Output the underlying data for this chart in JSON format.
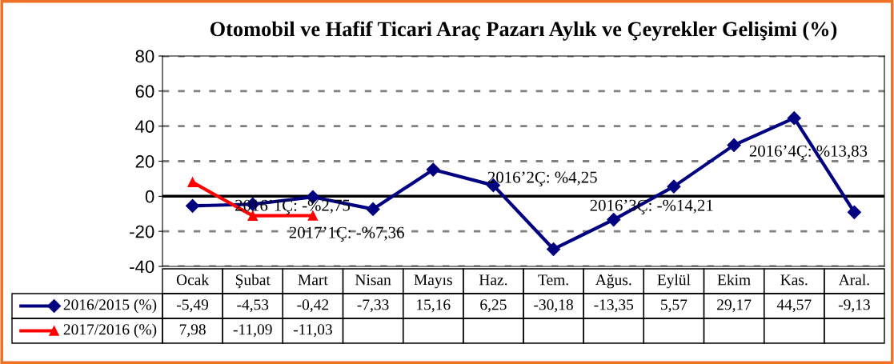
{
  "chart_data": {
    "type": "line",
    "title": "Otomobil ve Hafif Ticari Araç Pazarı Aylık ve Çeyrekler Gelişimi (%)",
    "categories": [
      "Ocak",
      "Şubat",
      "Mart",
      "Nisan",
      "Mayıs",
      "Haz.",
      "Tem.",
      "Ağus.",
      "Eylül",
      "Ekim",
      "Kas.",
      "Aral."
    ],
    "series": [
      {
        "name": "2016/2015 (%)",
        "color": "#000080",
        "marker": "diamond",
        "values": [
          -5.49,
          -4.53,
          -0.42,
          -7.33,
          15.16,
          6.25,
          -30.18,
          -13.35,
          5.57,
          29.17,
          44.57,
          -9.13
        ],
        "value_labels": [
          "-5,49",
          "-4,53",
          "-0,42",
          "-7,33",
          "15,16",
          "6,25",
          "-30,18",
          "-13,35",
          "5,57",
          "29,17",
          "44,57",
          "-9,13"
        ]
      },
      {
        "name": "2017/2016 (%)",
        "color": "#ff0000",
        "marker": "triangle",
        "values": [
          7.98,
          -11.09,
          -11.03,
          null,
          null,
          null,
          null,
          null,
          null,
          null,
          null,
          null
        ],
        "value_labels": [
          "7,98",
          "-11,09",
          "-11,03",
          null,
          null,
          null,
          null,
          null,
          null,
          null,
          null,
          null
        ]
      }
    ],
    "ylim": [
      -40,
      80
    ],
    "yticks": [
      -40,
      -20,
      0,
      20,
      40,
      60,
      80
    ],
    "grid": "y",
    "legend": "bottom",
    "line_style": "solid",
    "ref_lines": [
      {
        "axis": "y",
        "value": 0,
        "label": null,
        "color": "#000000"
      }
    ],
    "annotations": [
      "2016’1Ç: -%2,75",
      "2017’1Ç: -%7,36",
      "2016’2Ç: %4,25",
      "2016’3Ç: -%14,21",
      "2016’4Ç: %13,83"
    ]
  }
}
